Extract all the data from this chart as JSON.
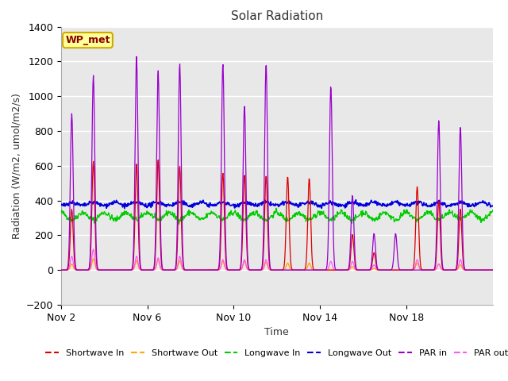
{
  "title": "Solar Radiation",
  "xlabel": "Time",
  "ylabel": "Radiation (W/m2, umol/m2/s)",
  "ylim": [
    -200,
    1400
  ],
  "yticks": [
    -200,
    0,
    200,
    400,
    600,
    800,
    1000,
    1200,
    1400
  ],
  "x_tick_labels": [
    "Nov 2",
    "Nov 6",
    "Nov 10",
    "Nov 14",
    "Nov 18"
  ],
  "x_tick_positions": [
    0,
    4,
    8,
    12,
    16
  ],
  "fig_bg_color": "#ffffff",
  "plot_bg_color": "#e8e8e8",
  "grid_color": "#ffffff",
  "annotation_text": "WP_met",
  "annotation_bg": "#ffff99",
  "annotation_border": "#ccaa00",
  "colors": {
    "shortwave_in": "#dd0000",
    "shortwave_out": "#ffaa00",
    "longwave_in": "#00cc00",
    "longwave_out": "#0000dd",
    "par_in": "#9900cc",
    "par_out": "#ff55ff"
  },
  "legend_labels": [
    "Shortwave In",
    "Shortwave Out",
    "Longwave In",
    "Longwave Out",
    "PAR in",
    "PAR out"
  ],
  "n_days": 20,
  "seed": 42
}
